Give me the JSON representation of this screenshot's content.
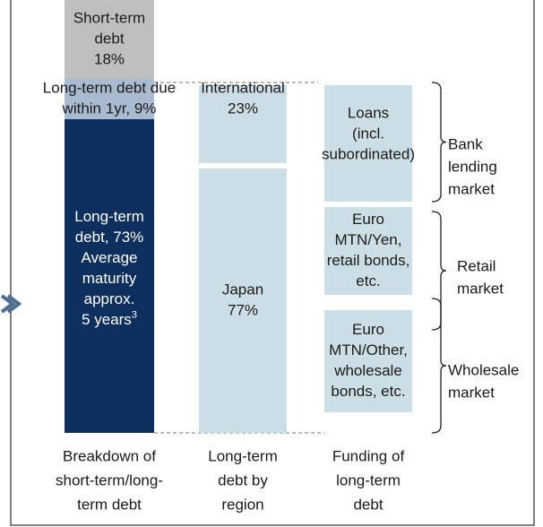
{
  "columns": [
    {
      "segments": [
        {
          "lines": [
            "Short-term",
            "debt",
            "18%"
          ]
        },
        {
          "lines": [
            "Long-term debt due",
            "within 1yr, 9%"
          ]
        },
        {
          "lines": [
            "Long-term",
            "debt, 73%",
            "Average",
            "maturity",
            "approx.",
            "5 years"
          ],
          "footnote": "3"
        }
      ],
      "caption": [
        "Breakdown of",
        "short-term/long-",
        "term debt"
      ]
    },
    {
      "segments": [
        {
          "lines": [
            "International",
            "23%"
          ]
        },
        {
          "lines": [
            "Japan",
            "77%"
          ]
        }
      ],
      "caption": [
        "Long-term",
        "debt by",
        "region"
      ]
    },
    {
      "segments": [
        {
          "lines": [
            "Loans",
            "(incl.",
            "subordinated)"
          ]
        },
        {
          "lines": [
            "Euro",
            "MTN/Yen,",
            "retail bonds,",
            "etc."
          ]
        },
        {
          "lines": [
            "Euro",
            "MTN/Other,",
            "wholesale",
            "bonds, etc."
          ]
        }
      ],
      "caption": [
        "Funding of",
        "long-term",
        "debt"
      ]
    }
  ],
  "brackets": [
    {
      "lines": [
        "Bank",
        "lending",
        "market"
      ]
    },
    {
      "lines": [
        "Retail",
        "market"
      ]
    },
    {
      "lines": [
        "Wholesale",
        "market"
      ]
    }
  ]
}
